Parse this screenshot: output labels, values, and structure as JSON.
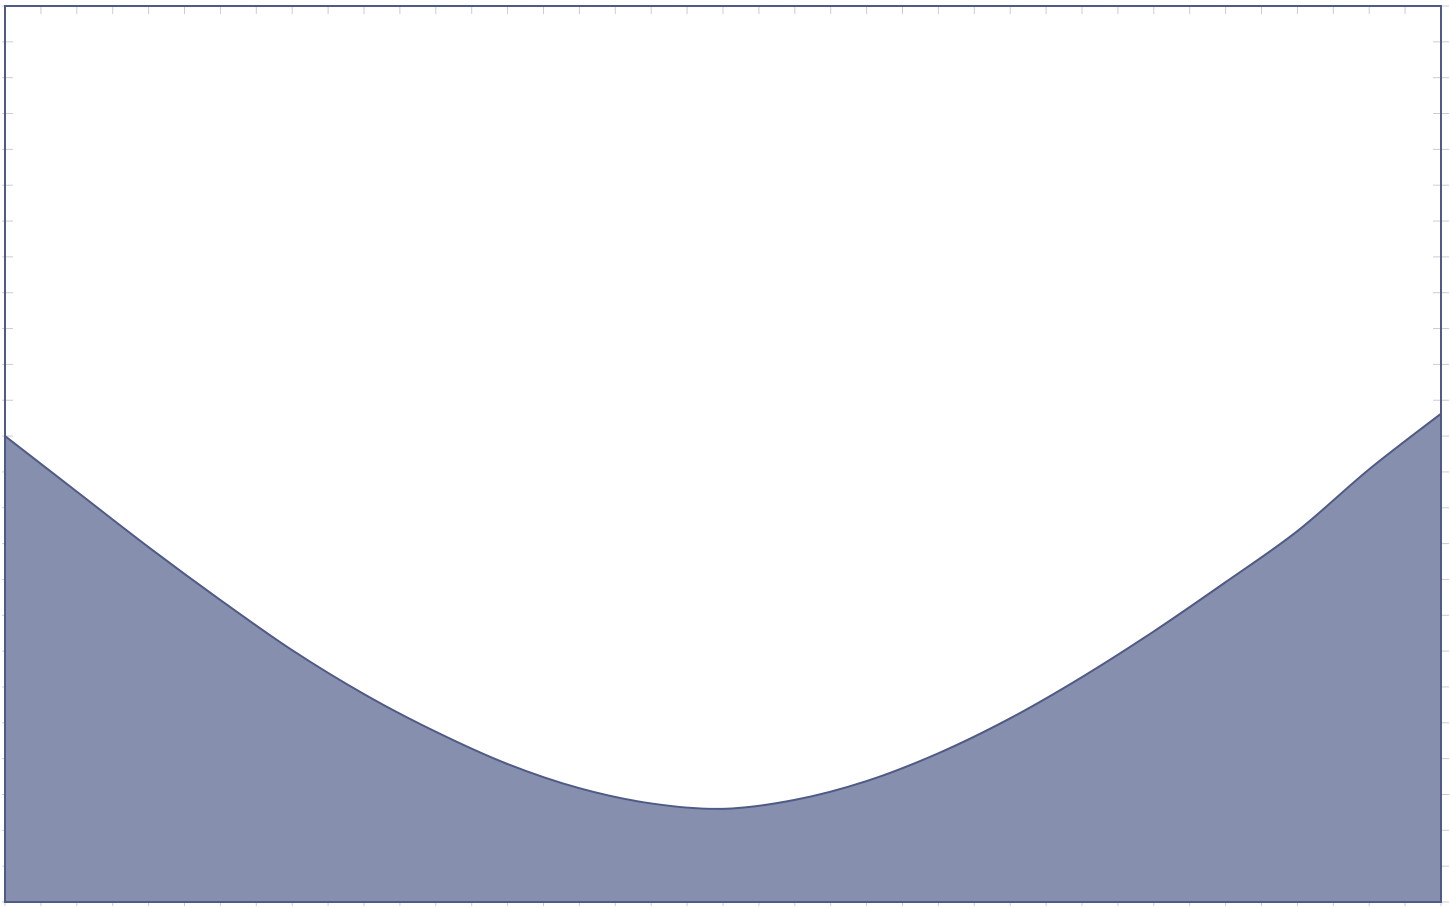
{
  "chart_data": {
    "type": "area",
    "title": "",
    "xlabel": "",
    "ylabel": "",
    "xlim": [
      0,
      1
    ],
    "ylim": [
      0,
      1
    ],
    "grid": false,
    "tick_marks": true,
    "tick_labels": false,
    "x_tick_count": 40,
    "y_tick_count": 25,
    "series": [
      {
        "x": [
          0,
          0.05,
          0.1,
          0.15,
          0.2,
          0.25,
          0.3,
          0.35,
          0.4,
          0.45,
          0.5,
          0.55,
          0.6,
          0.65,
          0.7,
          0.75,
          0.8,
          0.85,
          0.9,
          0.95,
          1
        ],
        "y": [
          0.52,
          0.458,
          0.396,
          0.337,
          0.281,
          0.232,
          0.19,
          0.154,
          0.127,
          0.11,
          0.104,
          0.114,
          0.135,
          0.166,
          0.205,
          0.251,
          0.302,
          0.357,
          0.414,
          0.483,
          0.545
        ]
      }
    ]
  },
  "colors": {
    "fill": "#8690ae",
    "stroke": "#4f5a85",
    "frame": "#4f5a85",
    "tick": "#c9ccd8",
    "background": "#ffffff"
  }
}
